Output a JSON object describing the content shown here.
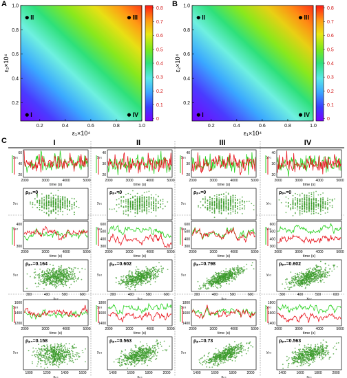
{
  "panels": {
    "A": {
      "label": "A"
    },
    "B": {
      "label": "B"
    },
    "C": {
      "label": "C"
    }
  },
  "heatmaps": [
    {
      "id": "A",
      "xlabel": "ε₁×10⁴",
      "ylabel": "ε₂×10⁴",
      "xticks": [
        "0.2",
        "0.4",
        "0.6",
        "0.8",
        "1.0"
      ],
      "yticks": [
        "0.2",
        "0.4",
        "0.6",
        "0.8",
        "1.0"
      ],
      "cbar_ticks": [
        "0",
        "0.1",
        "0.2",
        "0.3",
        "0.4",
        "0.5",
        "0.6",
        "0.7",
        "0.8"
      ],
      "points": [
        {
          "label": "II",
          "x": 0.1,
          "y": 0.9
        },
        {
          "label": "III",
          "x": 0.9,
          "y": 0.9
        },
        {
          "label": "I",
          "x": 0.1,
          "y": 0.1
        },
        {
          "label": "IV",
          "x": 0.9,
          "y": 0.1
        }
      ]
    },
    {
      "id": "B",
      "xlabel": "ε₁×10⁴",
      "ylabel": "ε₂×10⁴",
      "xticks": [
        "0.2",
        "0.4",
        "0.6",
        "0.8",
        "1.0"
      ],
      "yticks": [
        "0.2",
        "0.4",
        "0.6",
        "0.8",
        "1.0"
      ],
      "cbar_ticks": [
        "0",
        "0.1",
        "0.2",
        "0.3",
        "0.4",
        "0.5",
        "0.6",
        "0.7",
        "0.8"
      ],
      "points": [
        {
          "label": "II",
          "x": 0.1,
          "y": 0.9
        },
        {
          "label": "III",
          "x": 0.9,
          "y": 0.9
        },
        {
          "label": "I",
          "x": 0.1,
          "y": 0.1
        },
        {
          "label": "IV",
          "x": 0.9,
          "y": 0.1
        }
      ]
    }
  ],
  "grid": {
    "columns": [
      "I",
      "II",
      "III",
      "IV"
    ],
    "ts_xlabel": "time (s)",
    "ts_xticks": [
      "2000",
      "3000",
      "4000",
      "5000"
    ],
    "rows": [
      {
        "ts_ylabel": "yₚ₁",
        "ts_yticks": [
          [
            "60",
            "40",
            "20"
          ],
          [
            "40",
            "30",
            "20"
          ],
          [
            "40",
            "30",
            "20"
          ],
          [
            "40",
            "30",
            "20"
          ]
        ],
        "sc_xlabel": "xₚ₁",
        "sc_ylabel": "yₚ₁",
        "sc_xticks": [
          [
            "10",
            "20",
            "30",
            "40"
          ],
          [
            "10",
            "20",
            "30",
            "40"
          ],
          [
            "10",
            "20",
            "30",
            "40"
          ],
          [
            "10",
            "20",
            "30",
            "40"
          ]
        ],
        "rho": [
          "ρₚ₁=0",
          "ρₚ₁=0",
          "ρₚ₁=0",
          "ρₚ₁=0"
        ]
      },
      {
        "ts_ylabel": "yₚ₂",
        "ts_yticks": [
          [
            "400",
            "300"
          ],
          [
            "600",
            "500",
            "400",
            "300"
          ],
          [
            "600",
            "500",
            "400",
            "300"
          ],
          [
            "600",
            "500",
            "400",
            "300"
          ]
        ],
        "sc_xlabel": "xₚ₂",
        "sc_ylabel": "yₚ₂",
        "sc_xticks": [
          [
            "300",
            "400",
            "500",
            "600"
          ],
          [
            "300",
            "400",
            "500",
            "600"
          ],
          [
            "300",
            "400",
            "500",
            "600"
          ],
          [
            "300",
            "400",
            "500",
            "600"
          ]
        ],
        "rho": [
          "ρₚ₂=0.164",
          "ρₚ₂=0.602",
          "ρₚ₂=0.798",
          "ρₚ₂=0.602"
        ]
      },
      {
        "ts_ylabel": "yₚ₃",
        "ts_yticks": [
          [
            "1600",
            "1400",
            "1200"
          ],
          [
            "1800",
            "1600",
            "1400"
          ],
          [
            "1800",
            "1600",
            "1400"
          ],
          [
            "1800",
            "1600",
            "1400"
          ]
        ],
        "sc_xlabel": "xₚ₃",
        "sc_ylabel": "yₚ₃",
        "sc_xticks": [
          [
            "1000",
            "1200",
            "1400",
            "1600"
          ],
          [
            "1400",
            "1600",
            "1800",
            "2000"
          ],
          [
            "1400",
            "1600",
            "1800",
            "2000"
          ],
          [
            "1400",
            "1600",
            "1800",
            "2000"
          ]
        ],
        "rho": [
          "ρₚ₃=0.158",
          "ρₚ₃=0.563",
          "ρₚ₃=0.73",
          "ρₚ₃=0.563"
        ]
      }
    ],
    "row_rho": [
      [
        0,
        0,
        0,
        0
      ],
      [
        0.164,
        0.602,
        0.798,
        0.602
      ],
      [
        0.158,
        0.563,
        0.73,
        0.563
      ]
    ]
  },
  "colors": {
    "red_series": "#e8141c",
    "green_series": "#29d11f",
    "scatter": "#3a9a2a"
  }
}
